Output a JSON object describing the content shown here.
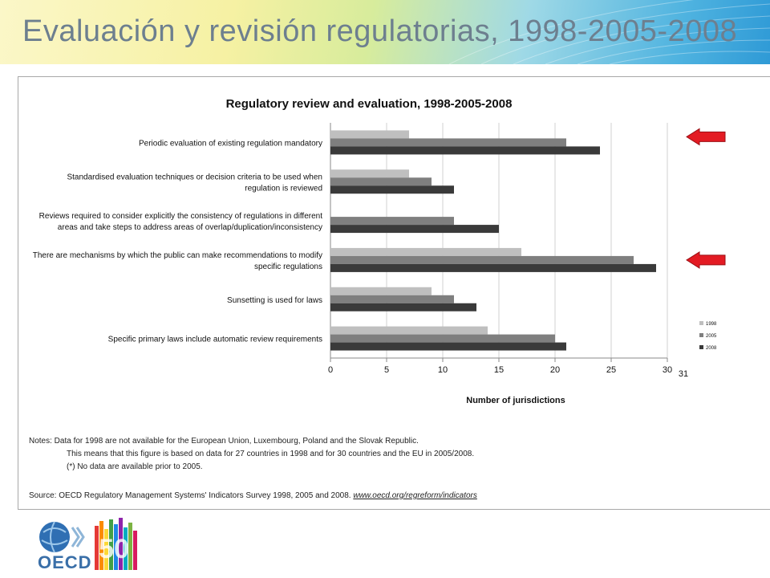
{
  "slide_title": "Evaluación y revisión regulatorias, 1998-2005-2008",
  "chart_data": {
    "type": "bar",
    "orientation": "horizontal",
    "title": "Regulatory review and evaluation, 1998-2005-2008",
    "xlabel": "Number of jurisdictions",
    "ylabel": "",
    "xlim": [
      0,
      30
    ],
    "xticks": [
      "0",
      "5",
      "10",
      "15",
      "20",
      "25",
      "30"
    ],
    "extra_tick_label": "31",
    "grid": true,
    "legend_position": "right",
    "categories": [
      [
        "Periodic evaluation of existing regulation mandatory"
      ],
      [
        "Standardised evaluation techniques or decision criteria to be used when",
        "regulation is reviewed"
      ],
      [
        "Reviews required to consider explicitly the consistency of regulations in different",
        "areas and take steps to address areas of overlap/duplication/inconsistency"
      ],
      [
        "There are mechanisms by which the public can make recommendations to modify",
        "specific regulations"
      ],
      [
        "Sunsetting is used for laws"
      ],
      [
        "Specific primary laws include automatic review requirements"
      ]
    ],
    "series": [
      {
        "name": "1998",
        "color": "#bfbfbf",
        "values": [
          7,
          7,
          null,
          17,
          9,
          14
        ]
      },
      {
        "name": "2005",
        "color": "#7f7f7f",
        "values": [
          21,
          9,
          11,
          27,
          11,
          20
        ]
      },
      {
        "name": "2008",
        "color": "#3a3a3a",
        "values": [
          24,
          11,
          15,
          29,
          13,
          21
        ]
      }
    ],
    "highlight_arrows": [
      0,
      3
    ],
    "arrow_color": "#e31b23"
  },
  "notes": {
    "line1": "Notes: Data for 1998 are not available for the European Union, Luxembourg, Poland and the Slovak Republic.",
    "line2": "This means that this figure is based on data for 27 countries in 1998 and for 30 countries and the EU in 2005/2008.",
    "line3": "(*) No data are available prior to 2005."
  },
  "source": {
    "text": "Source: OECD Regulatory Management Systems' Indicators Survey 1998, 2005 and 2008. ",
    "link": "www.oecd.org/regreform/indicators"
  },
  "logo": {
    "text": "OECD",
    "anniversary": "50"
  }
}
